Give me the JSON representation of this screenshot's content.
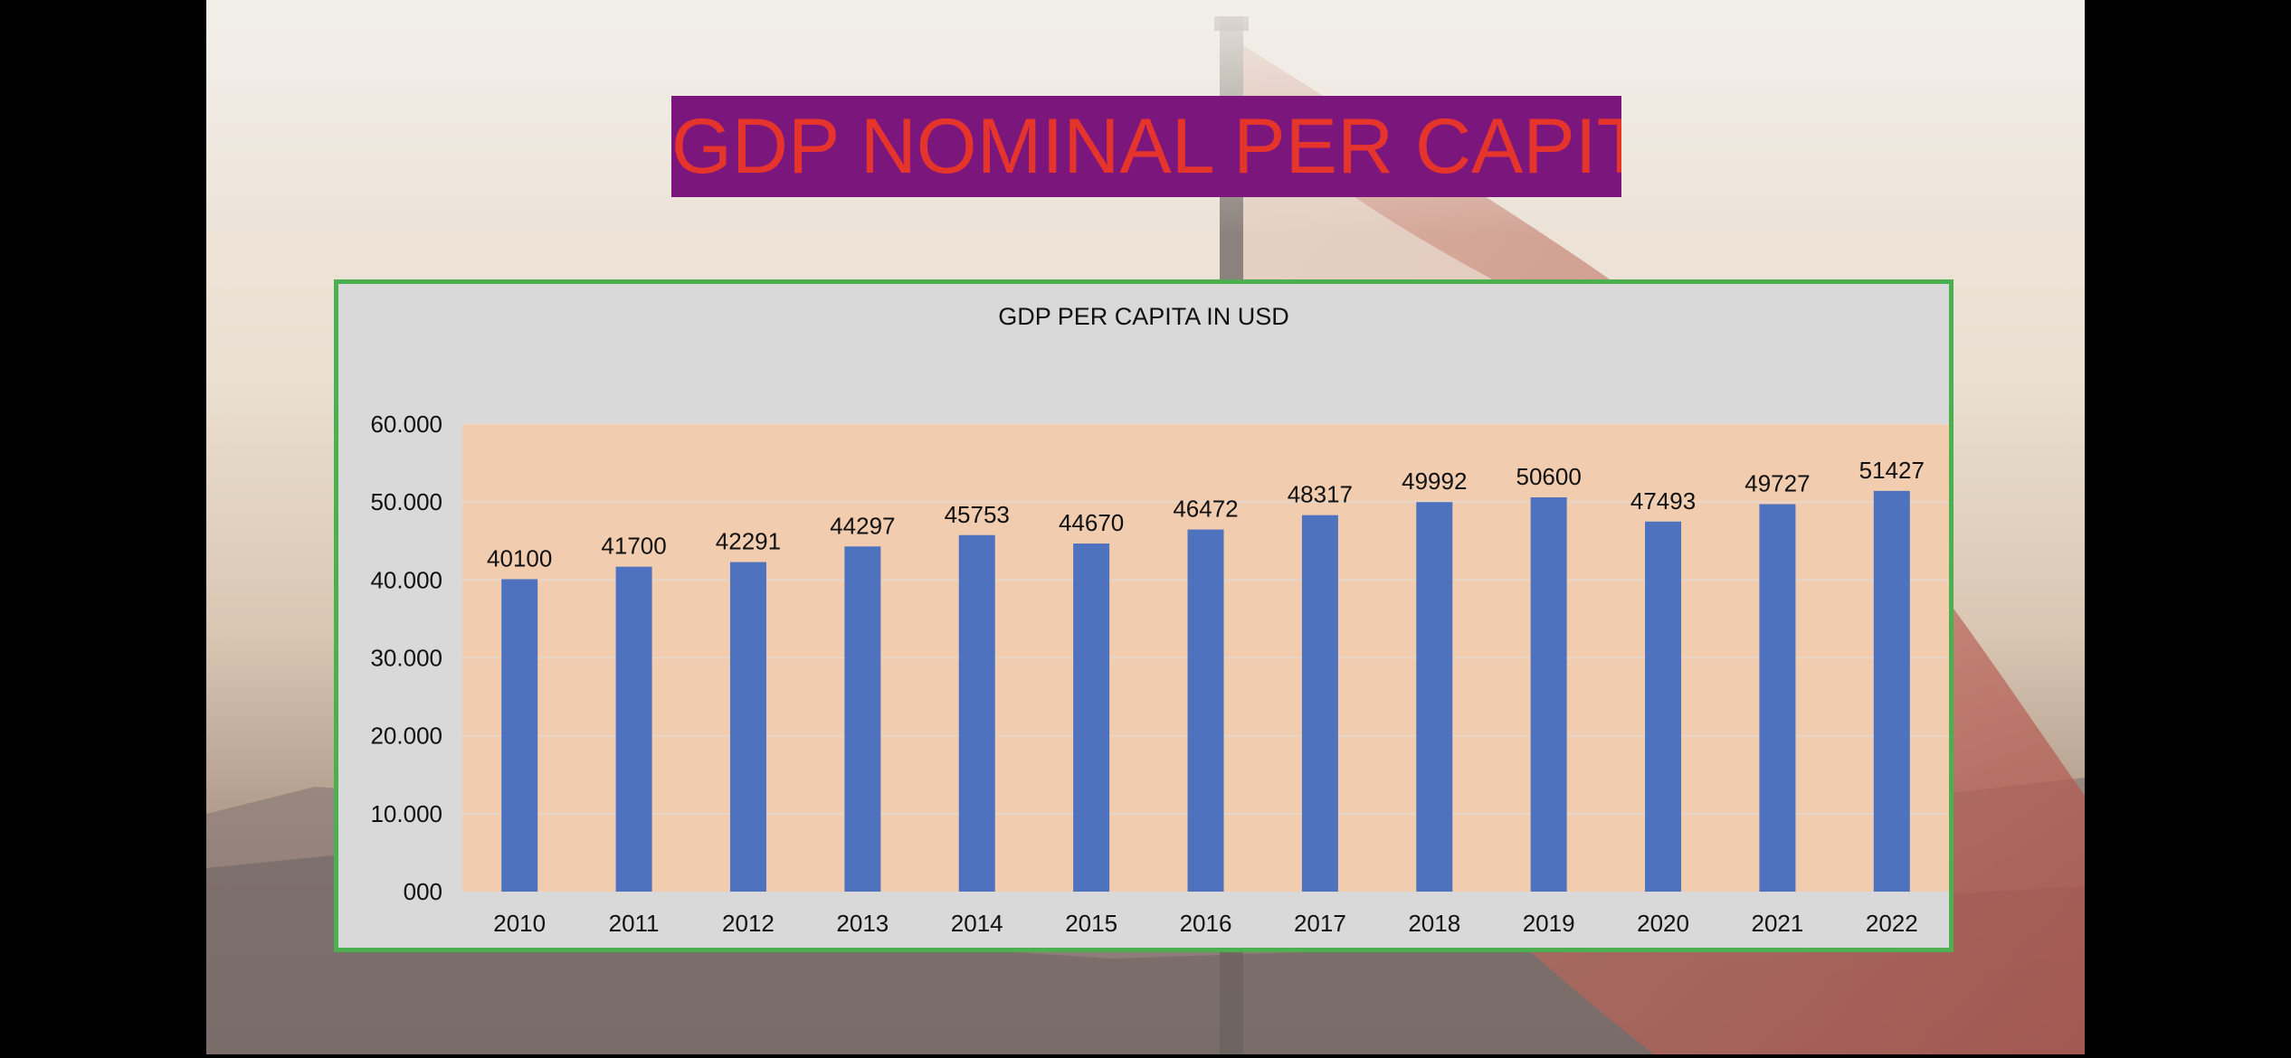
{
  "slide": {
    "title": "GDP NOMINAL PER CAPITA."
  },
  "colors": {
    "title_background": "#7b167c",
    "title_text": "#e5342c",
    "chart_border": "#4caf50",
    "chart_background": "#d9d9d9",
    "plot_background": "#f2ccaf",
    "bar": "#4f72bf"
  },
  "chart_data": {
    "type": "bar",
    "title": "GDP PER CAPITA IN USD",
    "xlabel": "",
    "ylabel": "",
    "categories": [
      "2010",
      "2011",
      "2012",
      "2013",
      "2014",
      "2015",
      "2016",
      "2017",
      "2018",
      "2019",
      "2020",
      "2021",
      "2022"
    ],
    "values": [
      40100,
      41700,
      42291,
      44297,
      45753,
      44670,
      46472,
      48317,
      49992,
      50600,
      47493,
      49727,
      51427
    ],
    "data_labels": [
      "40100",
      "41700",
      "42291",
      "44297",
      "45753",
      "44670",
      "46472",
      "48317",
      "49992",
      "50600",
      "47493",
      "49727",
      "51427"
    ],
    "ylim": [
      0,
      60000
    ],
    "y_ticks": [
      0,
      10000,
      20000,
      30000,
      40000,
      50000,
      60000
    ],
    "y_tick_labels": [
      "000",
      "10.000",
      "20.000",
      "30.000",
      "40.000",
      "50.000",
      "60.000"
    ],
    "grid": true,
    "legend": "none"
  }
}
